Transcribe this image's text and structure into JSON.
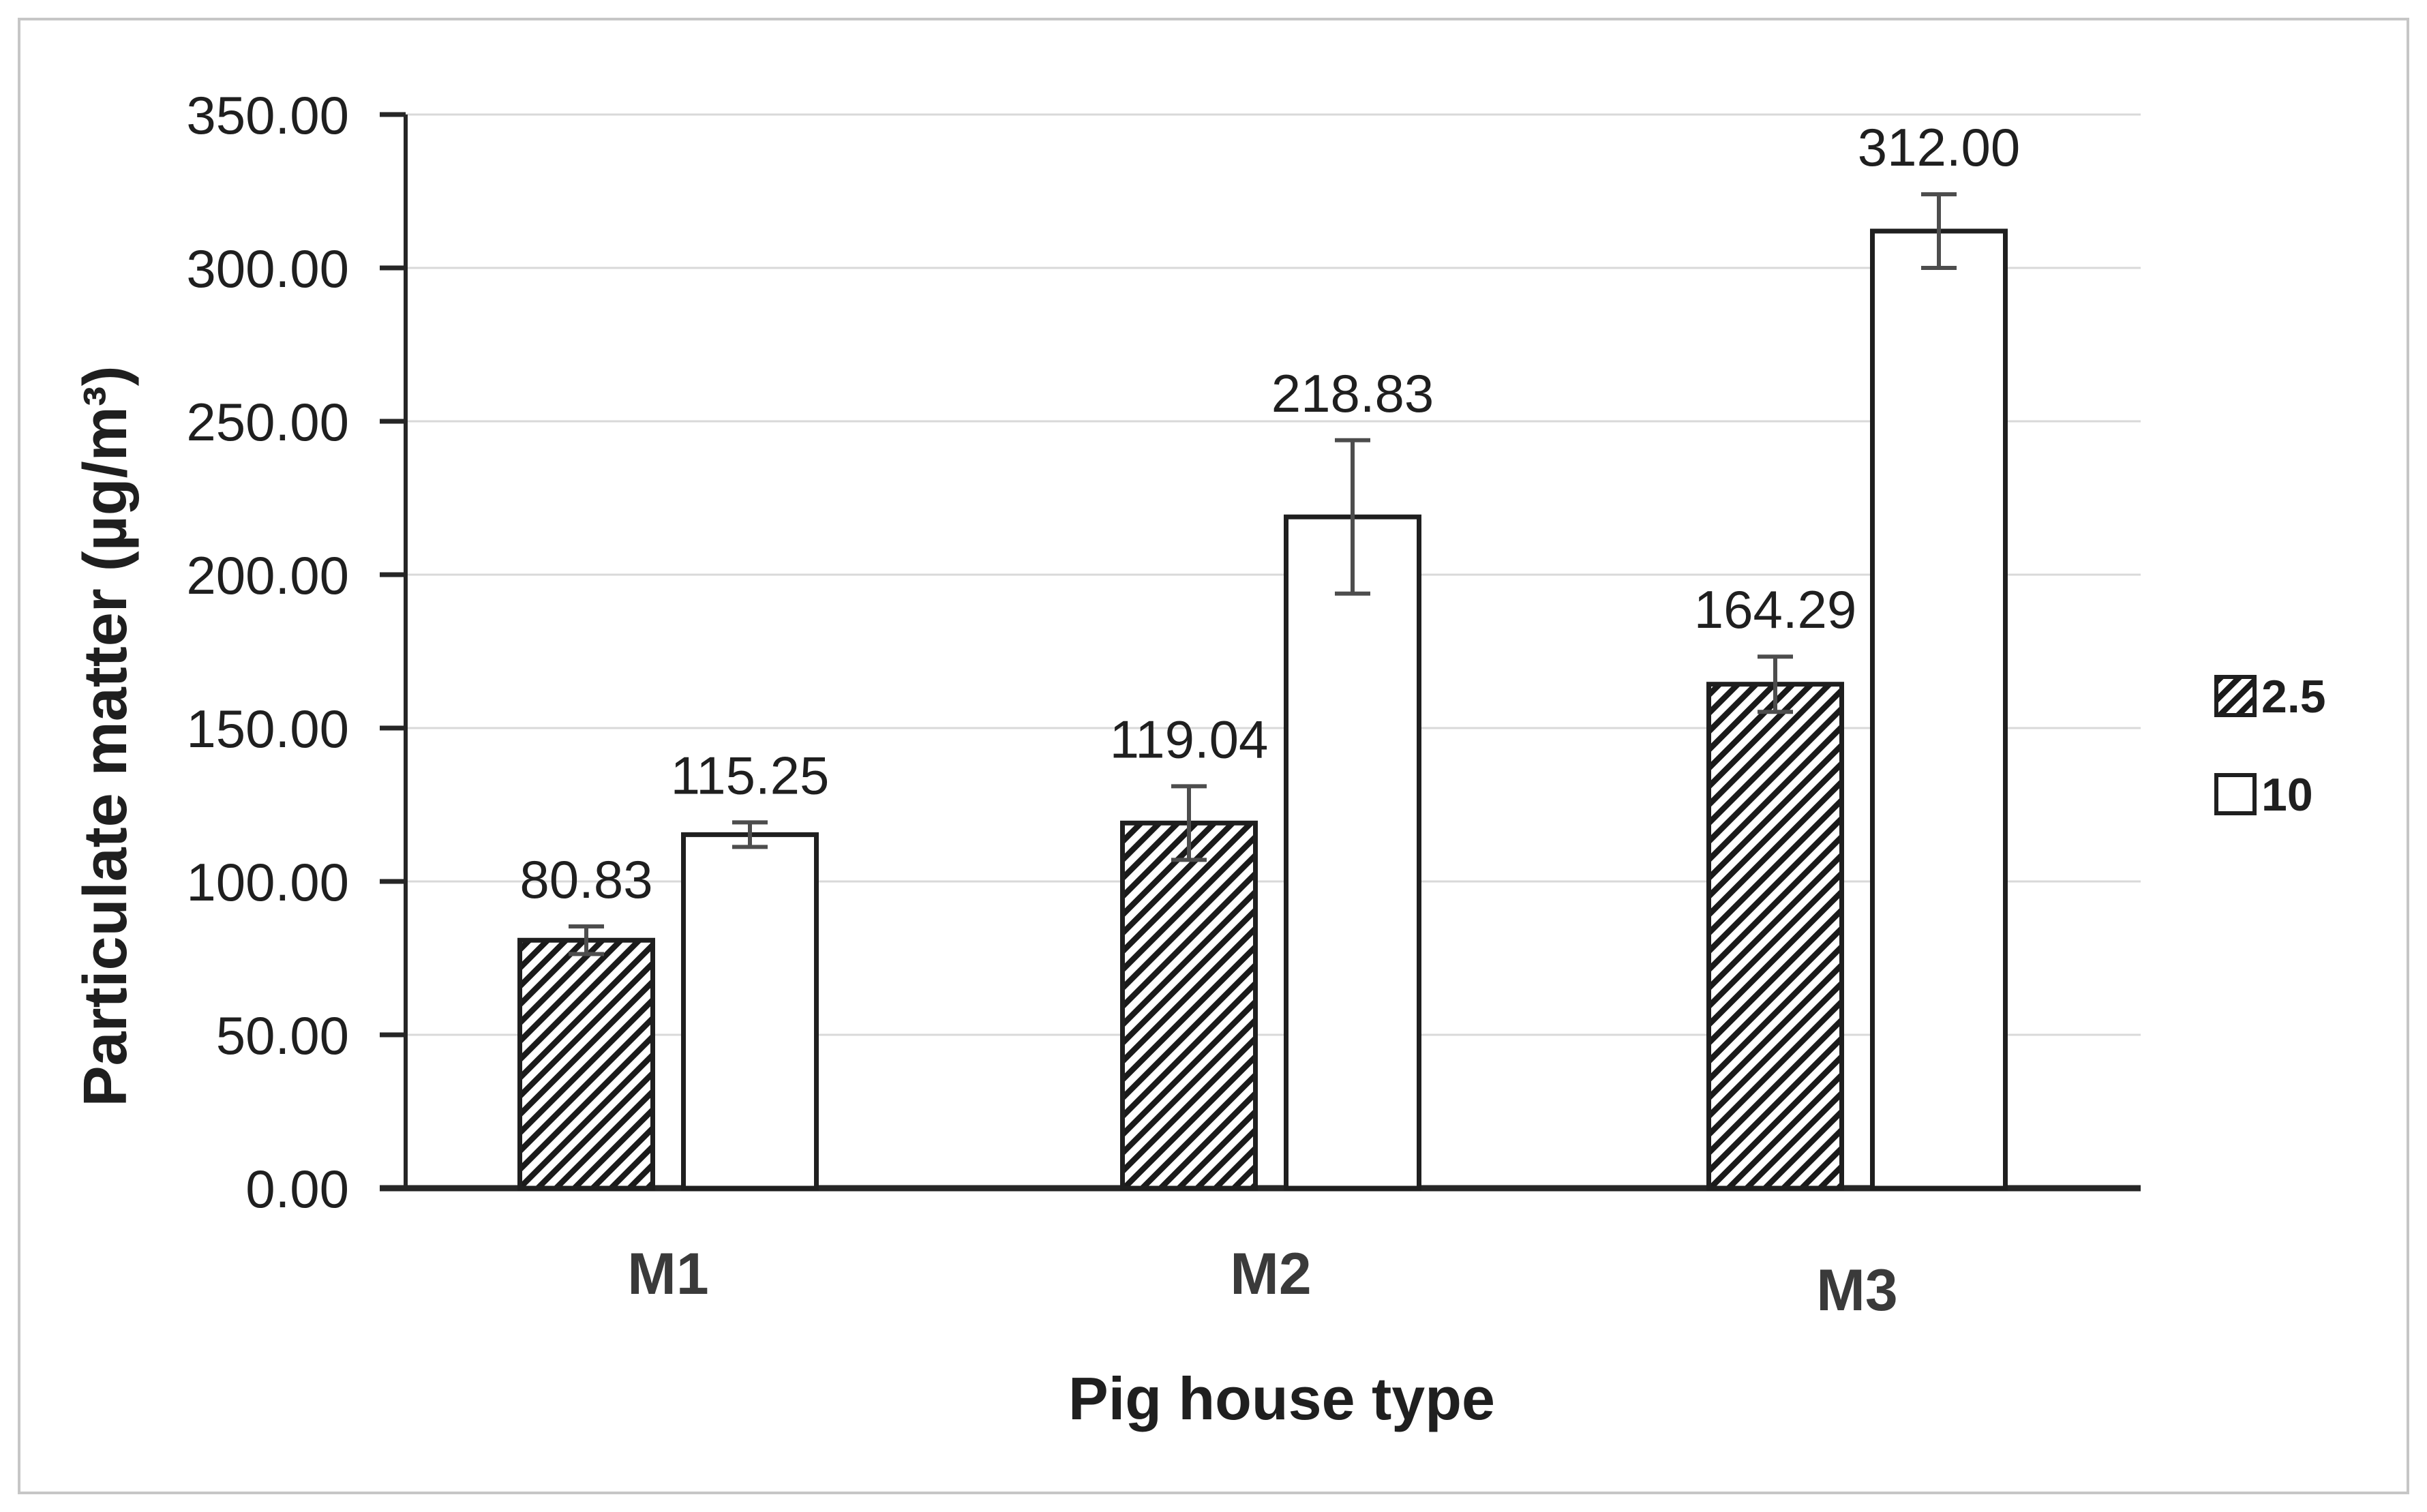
{
  "chart_data": {
    "type": "bar",
    "title": "",
    "xlabel": "Pig house type",
    "ylabel": "Particulate matter (µg/m³)",
    "categories": [
      "M1",
      "M2",
      "M3"
    ],
    "series": [
      {
        "name": "2.5",
        "style": "hatched",
        "values": [
          80.83,
          119.04,
          164.29
        ],
        "value_labels": [
          "80.83",
          "119.04",
          "164.29"
        ],
        "errors": [
          4.5,
          12,
          9
        ]
      },
      {
        "name": "10",
        "style": "open",
        "values": [
          115.25,
          218.83,
          312.0
        ],
        "value_labels": [
          "115.25",
          "218.83",
          "312.00"
        ],
        "errors": [
          4,
          25,
          12
        ]
      }
    ],
    "ylim": [
      0,
      350
    ],
    "ytick_step": 50,
    "ytick_labels": [
      "0.00",
      "50.00",
      "100.00",
      "150.00",
      "200.00",
      "250.00",
      "300.00",
      "350.00"
    ],
    "grid": true,
    "legend_position": "right",
    "legend_entries": [
      "2.5",
      "10"
    ]
  },
  "colors": {
    "background": "#ffffff",
    "figure_border": "#c6c6c6",
    "grid": "#d9d9d9",
    "axis": "#262626",
    "text": "#1f1f1f",
    "category_text": "#3a3a3a",
    "bar_stroke": "#1f1f1f",
    "bar_fill_open": "#ffffff",
    "hatch_line": "#1a1a1a",
    "error_bar": "#4d4d4d"
  }
}
